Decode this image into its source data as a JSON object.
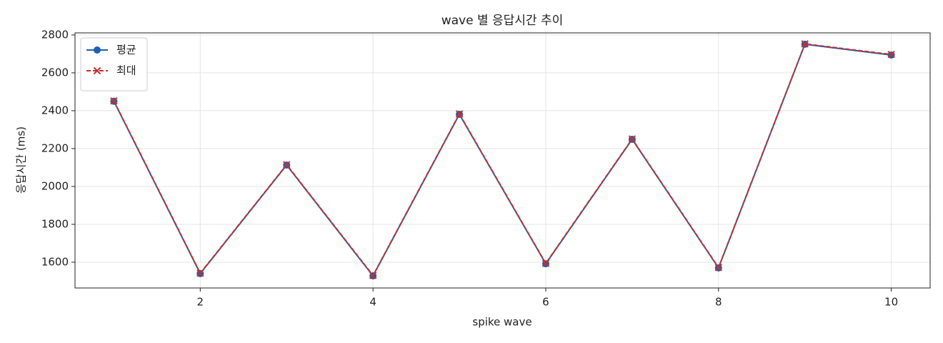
{
  "chart_data": {
    "type": "line",
    "title": "wave 별 응답시간 추이",
    "x_label": "spike wave",
    "y_label": "응답시간 (ms)",
    "x": [
      1,
      2,
      3,
      4,
      5,
      6,
      7,
      8,
      9,
      10
    ],
    "series": [
      {
        "name": "평균",
        "color": "#1f5fb0",
        "marker": "o",
        "dashed": false,
        "values": [
          2450,
          1540,
          2113,
          1528,
          2381,
          1592,
          2249,
          1570,
          2751,
          2694
        ]
      },
      {
        "name": "최대",
        "color": "#c8302c",
        "marker": "x",
        "dashed": true,
        "values": [
          2452,
          1542,
          2115,
          1530,
          2383,
          1594,
          2251,
          1572,
          2753,
          2697
        ]
      }
    ],
    "xlim": [
      0.55,
      10.45
    ],
    "xticks": [
      2,
      4,
      6,
      8,
      10
    ],
    "ylim": [
      1464,
      2811
    ],
    "yticks": [
      1600,
      1800,
      2000,
      2200,
      2400,
      2600,
      2800
    ],
    "grid": true,
    "legend": "upper left"
  }
}
